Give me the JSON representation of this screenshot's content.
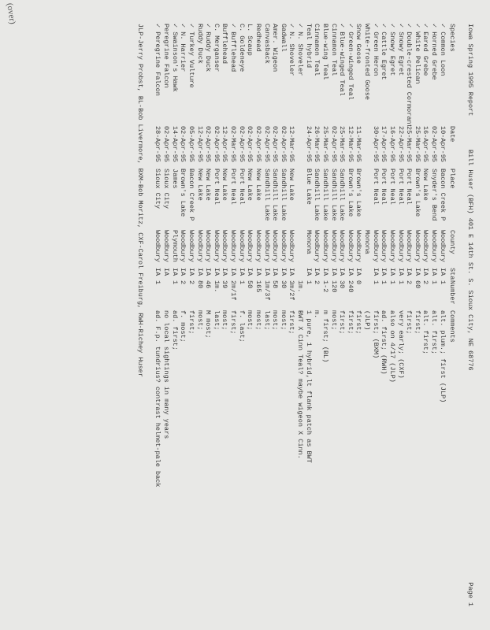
{
  "header": {
    "title": "Iowa  Spring 1995 Report",
    "author": "Bill Huser (BFH) 401 E 14th St. S. Sioux City, NE 68776",
    "page": "Page 1"
  },
  "columns": [
    "Species",
    "Date",
    "Place",
    "County",
    "Sta",
    "Number",
    "Comments"
  ],
  "rows": [
    {
      "chk": "✓",
      "sp": "Common Loon",
      "d": "10-Apr-95",
      "pl": "Bacon Creek P",
      "co": "Woodbury",
      "st": "IA",
      "n": "1",
      "c": "alt. plum.; first (JLP)"
    },
    {
      "chk": "✓",
      "sp": "Horned Grebe",
      "d": "02-Apr-95",
      "pl": "Snyder's Bend",
      "co": "Woodbury",
      "st": "IA",
      "n": "1",
      "c": "alt. first;"
    },
    {
      "chk": "✓",
      "sp": "Eared Grebe",
      "d": "16-Apr-95",
      "pl": "New Lake",
      "co": "Woodbury",
      "st": "IA",
      "n": "2",
      "c": "alt. first;"
    },
    {
      "chk": "✓",
      "sp": "White Pelican",
      "d": "25-Mar-95",
      "pl": "Brown's Lake",
      "co": "Woodbury",
      "st": "IA",
      "n": "60",
      "c": "first;"
    },
    {
      "chk": "✓",
      "sp": "Double-crested Cormorant",
      "d": "25-Mar-95",
      "pl": "Port Neal",
      "co": "Woodbury",
      "st": "IA",
      "n": "2",
      "c": "first;"
    },
    {
      "chk": "✓",
      "sp": "Snowy Egret",
      "d": "22-Apr-95",
      "pl": "Port Neal",
      "co": "Woodbury",
      "st": "IA",
      "n": "1",
      "c": "very early; (CXF)"
    },
    {
      "chk": "✓",
      "sp": "Snowy Egret",
      "d": "16-Apr-95",
      "pl": "Port Neal",
      "co": "Woodbury",
      "st": "IA",
      "n": "1",
      "c": "also on 4/17 (JLP)"
    },
    {
      "chk": "✓",
      "sp": "Cattle Egret",
      "d": "17-Apr-95",
      "pl": "Port Neal",
      "co": "Woodbury",
      "st": "IA",
      "n": "1",
      "c": "ad. first; (RWH)"
    },
    {
      "chk": "✓",
      "sp": "Green Heron",
      "d": "30-Apr-95",
      "pl": "Port Neal",
      "co": "Woodbury",
      "st": "IA",
      "n": "1",
      "c": "first; (BXM)"
    },
    {
      "chk": "",
      "sp": "White-fronted Goose",
      "d": "",
      "pl": "",
      "co": "Monona",
      "st": "",
      "n": "",
      "c": "(JLP)"
    },
    {
      "chk": "",
      "sp": "Snow Goose",
      "d": "11-Mar-95",
      "pl": "Brown's Lake",
      "co": "Woodbury",
      "st": "IA",
      "n": "0",
      "c": "first;"
    },
    {
      "chk": "✓",
      "sp": "Green-winged Teal",
      "d": "12-Mar-95",
      "pl": "Brown's Lake",
      "co": "Woodbury",
      "st": "IA",
      "n": "240",
      "c": "first;"
    },
    {
      "chk": "✓",
      "sp": "Blue-winged Teal",
      "d": "25-Mar-95",
      "pl": "Sandhill Lake",
      "co": "Woodbury",
      "st": "IA",
      "n": "30",
      "c": "first;"
    },
    {
      "chk": "",
      "sp": "Cinnamon Teal",
      "d": "02-Apr-95",
      "pl": "Sandhill Lake",
      "co": "Woodbury",
      "st": "IA",
      "n": "120",
      "c": "most;"
    },
    {
      "chk": "",
      "sp": "Blue-wing Teal",
      "d": "25-Mar-95",
      "pl": "Sandhill Lake",
      "co": "Woodbury",
      "st": "IA",
      "n": "1-2",
      "c": "m first; (BL)"
    },
    {
      "chk": "",
      "sp": "Cinnamon Teal",
      "d": "26-Mar-95",
      "pl": "Sandhill Lake",
      "co": "Woodbury",
      "st": "IA",
      "n": "2",
      "c": "m."
    },
    {
      "chk": "",
      "sp": "Teal hybrid",
      "d": "24-Apr-95",
      "pl": "Blue Lake",
      "co": "Monona",
      "st": "IA",
      "n": "1",
      "c": "1 pure, 1 hybrid,lt flank patch as BWT"
    },
    {
      "chk": "✓",
      "sp": "N. Shoveler",
      "d": "",
      "pl": "",
      "co": "",
      "st": "",
      "n": "1m.",
      "c": "BWT X Cinn Teal? maybe wigeon X Cinn."
    },
    {
      "chk": "✓",
      "sp": "N. Shoveler",
      "d": "12-Mar-95",
      "pl": "New Lake",
      "co": "Woodbury",
      "st": "IA",
      "n": "3m/2f",
      "c": "first;"
    },
    {
      "chk": "",
      "sp": "Gadwall",
      "d": "02-Apr-95",
      "pl": "Sandhill Lake",
      "co": "Woodbury",
      "st": "IA",
      "n": "30",
      "c": "most;"
    },
    {
      "chk": "",
      "sp": "Amer. Wigeon",
      "d": "02-Apr-95",
      "pl": "Sandhill Lake",
      "co": "Woodbury",
      "st": "IA",
      "n": "58",
      "c": "most;"
    },
    {
      "chk": "",
      "sp": "Canvasback",
      "d": "02-Apr-95",
      "pl": "Sandhill Lake",
      "co": "Woodbury",
      "st": "IA",
      "n": "1m/3f",
      "c": "last;"
    },
    {
      "chk": "",
      "sp": "Redhead",
      "d": "02-Apr-95",
      "pl": "New Lake",
      "co": "Woodbury",
      "st": "IA",
      "n": "165",
      "c": "most;"
    },
    {
      "chk": "",
      "sp": "L. Scaup",
      "d": "02-Apr-95",
      "pl": "New Lake",
      "co": "Woodbury",
      "st": "IA",
      "n": "50",
      "c": "most;"
    },
    {
      "chk": "",
      "sp": "C. Goldeneye",
      "d": "02-Apr-95",
      "pl": "Port Neal",
      "co": "Woodbury",
      "st": "IA",
      "n": "1",
      "c": "f. last;"
    },
    {
      "chk": "✓",
      "sp": "Bufflehead",
      "d": "02-Mar-95",
      "pl": "Port Neal",
      "co": "Woodbury",
      "st": "IA",
      "n": "2m/1f",
      "c": "first;"
    },
    {
      "chk": "",
      "sp": "Bufflehead",
      "d": "12-Apr-95",
      "pl": "New Lake",
      "co": "Woodbury",
      "st": "IA",
      "n": "39",
      "c": "most;"
    },
    {
      "chk": "",
      "sp": "C. Merganser",
      "d": "02-Apr-95",
      "pl": "Port Neal",
      "co": "Woodbury",
      "st": "IA",
      "n": "1m.",
      "c": "last;"
    },
    {
      "chk": "✓",
      "sp": "Ruddy Duck",
      "d": "02-Apr-95",
      "pl": "New Lake",
      "co": "Woodbury",
      "st": "IA",
      "n": "46",
      "c": "M  most;"
    },
    {
      "chk": "",
      "sp": "Ruddy Duck",
      "d": "12-Apr-95",
      "pl": "New Lake",
      "co": "Woodbury",
      "st": "IA",
      "n": "80",
      "c": "most;"
    },
    {
      "chk": "✓",
      "sp": "Turkey Vulture",
      "d": "05-Apr-95",
      "pl": "Bacon Creek P",
      "co": "Woodbury",
      "st": "IA",
      "n": "2",
      "c": "first;"
    },
    {
      "chk": "✓",
      "sp": "N. Harrier",
      "d": "02-Apr-95",
      "pl": "Brown's Lake",
      "co": "Woodbury",
      "st": "IA",
      "n": "2",
      "c": "f. most;"
    },
    {
      "chk": "✓",
      "sp": "Swainson's Hawk",
      "d": "14-Apr-95",
      "pl": "James",
      "co": "Plymouth",
      "st": "IA",
      "n": "1",
      "c": "ad. first;"
    },
    {
      "chk": "",
      "sp": "Peregrine Falcon",
      "d": "02-Apr-95",
      "pl": "Sioux City",
      "co": "Woodbury",
      "st": "IA",
      "n": "",
      "c": "no local sightings in many years"
    },
    {
      "chk": "✓",
      "sp": "Peregrine Falcon",
      "d": "28-Apr-95",
      "pl": "Sioux City",
      "co": "Woodbury",
      "st": "IA",
      "n": "1",
      "c": "ad. F.p. tundrius? contrast helmet-pale back"
    }
  ],
  "footer": "JLP-Jerry Probst, BL-Bob Livermore, BXM-Bob Moritz, CXF-Carol Freiburg, RWH-Richey Huser",
  "handnote": "(over)"
}
